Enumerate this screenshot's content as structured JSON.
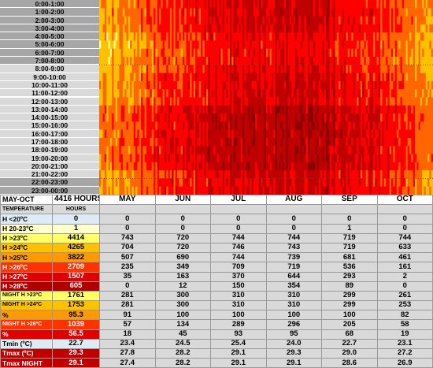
{
  "hour_labels": [
    "0:00-1:00",
    "1:00-2:00",
    "2:00-3:00",
    "3:00-4:00",
    "4:00-5:00",
    "5:00-6:00",
    "6:00-7:00",
    "7:00-8:00",
    "8:00-9:00",
    "9:00-10:00",
    "10:00-11:00",
    "11:00-12:00",
    "12:00-13:00",
    "13:00-14:00",
    "14:00-15:00",
    "15:00-16:00",
    "16:00-17:00",
    "17:00-18:00",
    "18:00-19:00",
    "19:00-20:00",
    "20:00-21:00",
    "21:00-22:00",
    "22:00-23:00",
    "23:00-00:00"
  ],
  "chart_data": {
    "type": "heatmap",
    "rows": "hours of day (0:00 to 24:00)",
    "columns": "days from May to October",
    "colors": [
      "#ffff99",
      "#ffc000",
      "#ff6600",
      "#ff0000",
      "#c00000",
      "#8b0000"
    ],
    "month_intensity": {
      "MAY": 1.3,
      "JUN": 2.6,
      "JUL": 3.6,
      "AUG": 3.9,
      "SEP": 3.1,
      "OCT": 1.7
    }
  },
  "table": {
    "period_label": "MAY-OCT",
    "total_hours_label": "4416 HOURS",
    "header": {
      "col1": "TEMPERATURE",
      "col2": "HOURS"
    },
    "months": [
      "MAY",
      "JUN",
      "JUL",
      "AUG",
      "SEP",
      "OCT"
    ],
    "rows": [
      {
        "label": "H <20ºC",
        "total": "0",
        "values": [
          "0",
          "0",
          "0",
          "0",
          "0",
          "0"
        ],
        "color": "#ddebf7",
        "label_color": "#000000"
      },
      {
        "label": "H 20-23ºC",
        "total": "1",
        "values": [
          "0",
          "0",
          "0",
          "0",
          "1",
          "0"
        ],
        "color": "#ffffcc",
        "label_color": "#000000"
      },
      {
        "label": "H >23ºC",
        "total": "4414",
        "values": [
          "743",
          "720",
          "744",
          "744",
          "719",
          "744"
        ],
        "color": "#ffff66",
        "label_color": "#000000"
      },
      {
        "label": "H >24ºC",
        "total": "4265",
        "values": [
          "704",
          "720",
          "746",
          "743",
          "719",
          "633"
        ],
        "color": "#ffc000",
        "label_color": "#000000"
      },
      {
        "label": "H >25ºC",
        "total": "3822",
        "values": [
          "507",
          "690",
          "744",
          "739",
          "681",
          "461"
        ],
        "color": "#ff9900",
        "label_color": "#000000"
      },
      {
        "label": "H >26ºC",
        "total": "2709",
        "values": [
          "235",
          "349",
          "709",
          "719",
          "536",
          "161"
        ],
        "color": "#ff3300",
        "label_color": "#ffffff"
      },
      {
        "label": "H >27ºC",
        "total": "1507",
        "values": [
          "35",
          "163",
          "370",
          "644",
          "293",
          "2"
        ],
        "color": "#e00000",
        "label_color": "#ffffff"
      },
      {
        "label": "H >28ºC",
        "total": "605",
        "values": [
          "0",
          "12",
          "150",
          "354",
          "89",
          "0"
        ],
        "color": "#b00000",
        "label_color": "#ffffff"
      },
      {
        "label": "NIGHT H >23ºC",
        "total": "1761",
        "values": [
          "281",
          "300",
          "310",
          "310",
          "299",
          "261"
        ],
        "color": "#ffff66",
        "label_color": "#000000",
        "small": true
      },
      {
        "label": "NIGHT H >24ºC",
        "total": "1753",
        "values": [
          "281",
          "300",
          "310",
          "310",
          "299",
          "253"
        ],
        "color": "#ffc000",
        "label_color": "#000000",
        "small": true
      },
      {
        "label": "%",
        "total": "95.3",
        "values": [
          "91",
          "100",
          "100",
          "100",
          "100",
          "82"
        ],
        "color": "#ff9900",
        "label_color": "#000000"
      },
      {
        "label": "NIGHT H >26ºC",
        "total": "1039",
        "values": [
          "57",
          "134",
          "289",
          "296",
          "205",
          "58"
        ],
        "color": "#ff3300",
        "label_color": "#ffffff",
        "small": true
      },
      {
        "label": "%",
        "total": "56.5",
        "values": [
          "18",
          "45",
          "93",
          "95",
          "68",
          "19"
        ],
        "color": "#e00000",
        "label_color": "#ffffff"
      },
      {
        "label": "Tmin (ºC)",
        "total": "22.7",
        "values": [
          "23.4",
          "24.5",
          "25.4",
          "24.0",
          "22.7",
          "23.1"
        ],
        "color": "#ddebf7",
        "label_color": "#000000"
      },
      {
        "label": "Tmax (ºC)",
        "total": "29.3",
        "values": [
          "27.8",
          "28.2",
          "29.1",
          "29.3",
          "29.0",
          "27.2"
        ],
        "color": "#c00000",
        "label_color": "#ffffff"
      },
      {
        "label": "Tmax NIGHT",
        "total": "29.1",
        "values": [
          "27.4",
          "28.2",
          "29.1",
          "29.1",
          "28.6",
          "26.9"
        ],
        "color": "#c00000",
        "label_color": "#ffffff"
      }
    ]
  }
}
